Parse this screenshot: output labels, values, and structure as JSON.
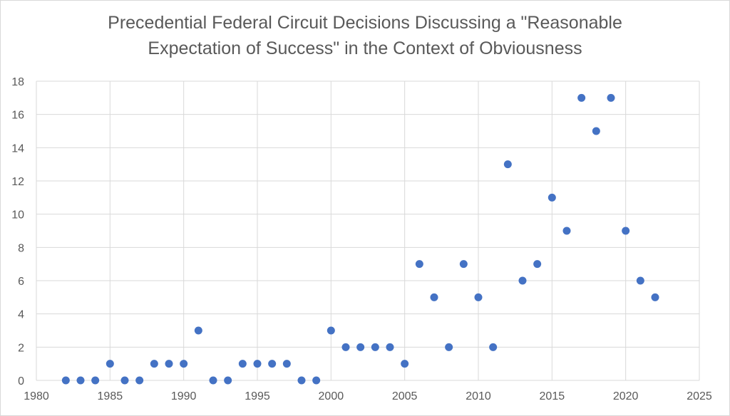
{
  "chart_data": {
    "type": "scatter",
    "title_lines": [
      "Precedential Federal Circuit Decisions Discussing a \"Reasonable",
      "Expectation of Success\" in the Context of Obviousness"
    ],
    "xlabel": "",
    "ylabel": "",
    "xlim": [
      1980,
      2025
    ],
    "ylim": [
      0,
      18
    ],
    "x_ticks": [
      1980,
      1985,
      1990,
      1995,
      2000,
      2005,
      2010,
      2015,
      2020,
      2025
    ],
    "y_ticks": [
      0,
      2,
      4,
      6,
      8,
      10,
      12,
      14,
      16,
      18
    ],
    "grid": true,
    "legend": "none",
    "marker_color": "#4472c4",
    "grid_color": "#d9d9d9",
    "series": [
      {
        "name": "Decisions",
        "x": [
          1982,
          1983,
          1984,
          1985,
          1986,
          1987,
          1988,
          1989,
          1990,
          1991,
          1992,
          1993,
          1994,
          1995,
          1996,
          1997,
          1998,
          1999,
          2000,
          2001,
          2002,
          2003,
          2004,
          2005,
          2006,
          2007,
          2008,
          2009,
          2010,
          2011,
          2012,
          2013,
          2014,
          2015,
          2016,
          2017,
          2018,
          2019,
          2020,
          2021,
          2022
        ],
        "y": [
          0,
          0,
          0,
          1,
          0,
          0,
          1,
          1,
          1,
          3,
          0,
          0,
          1,
          1,
          1,
          1,
          0,
          0,
          3,
          2,
          2,
          2,
          2,
          1,
          7,
          5,
          2,
          7,
          5,
          2,
          13,
          6,
          7,
          11,
          9,
          17,
          15,
          17,
          9,
          6,
          5
        ]
      }
    ]
  }
}
